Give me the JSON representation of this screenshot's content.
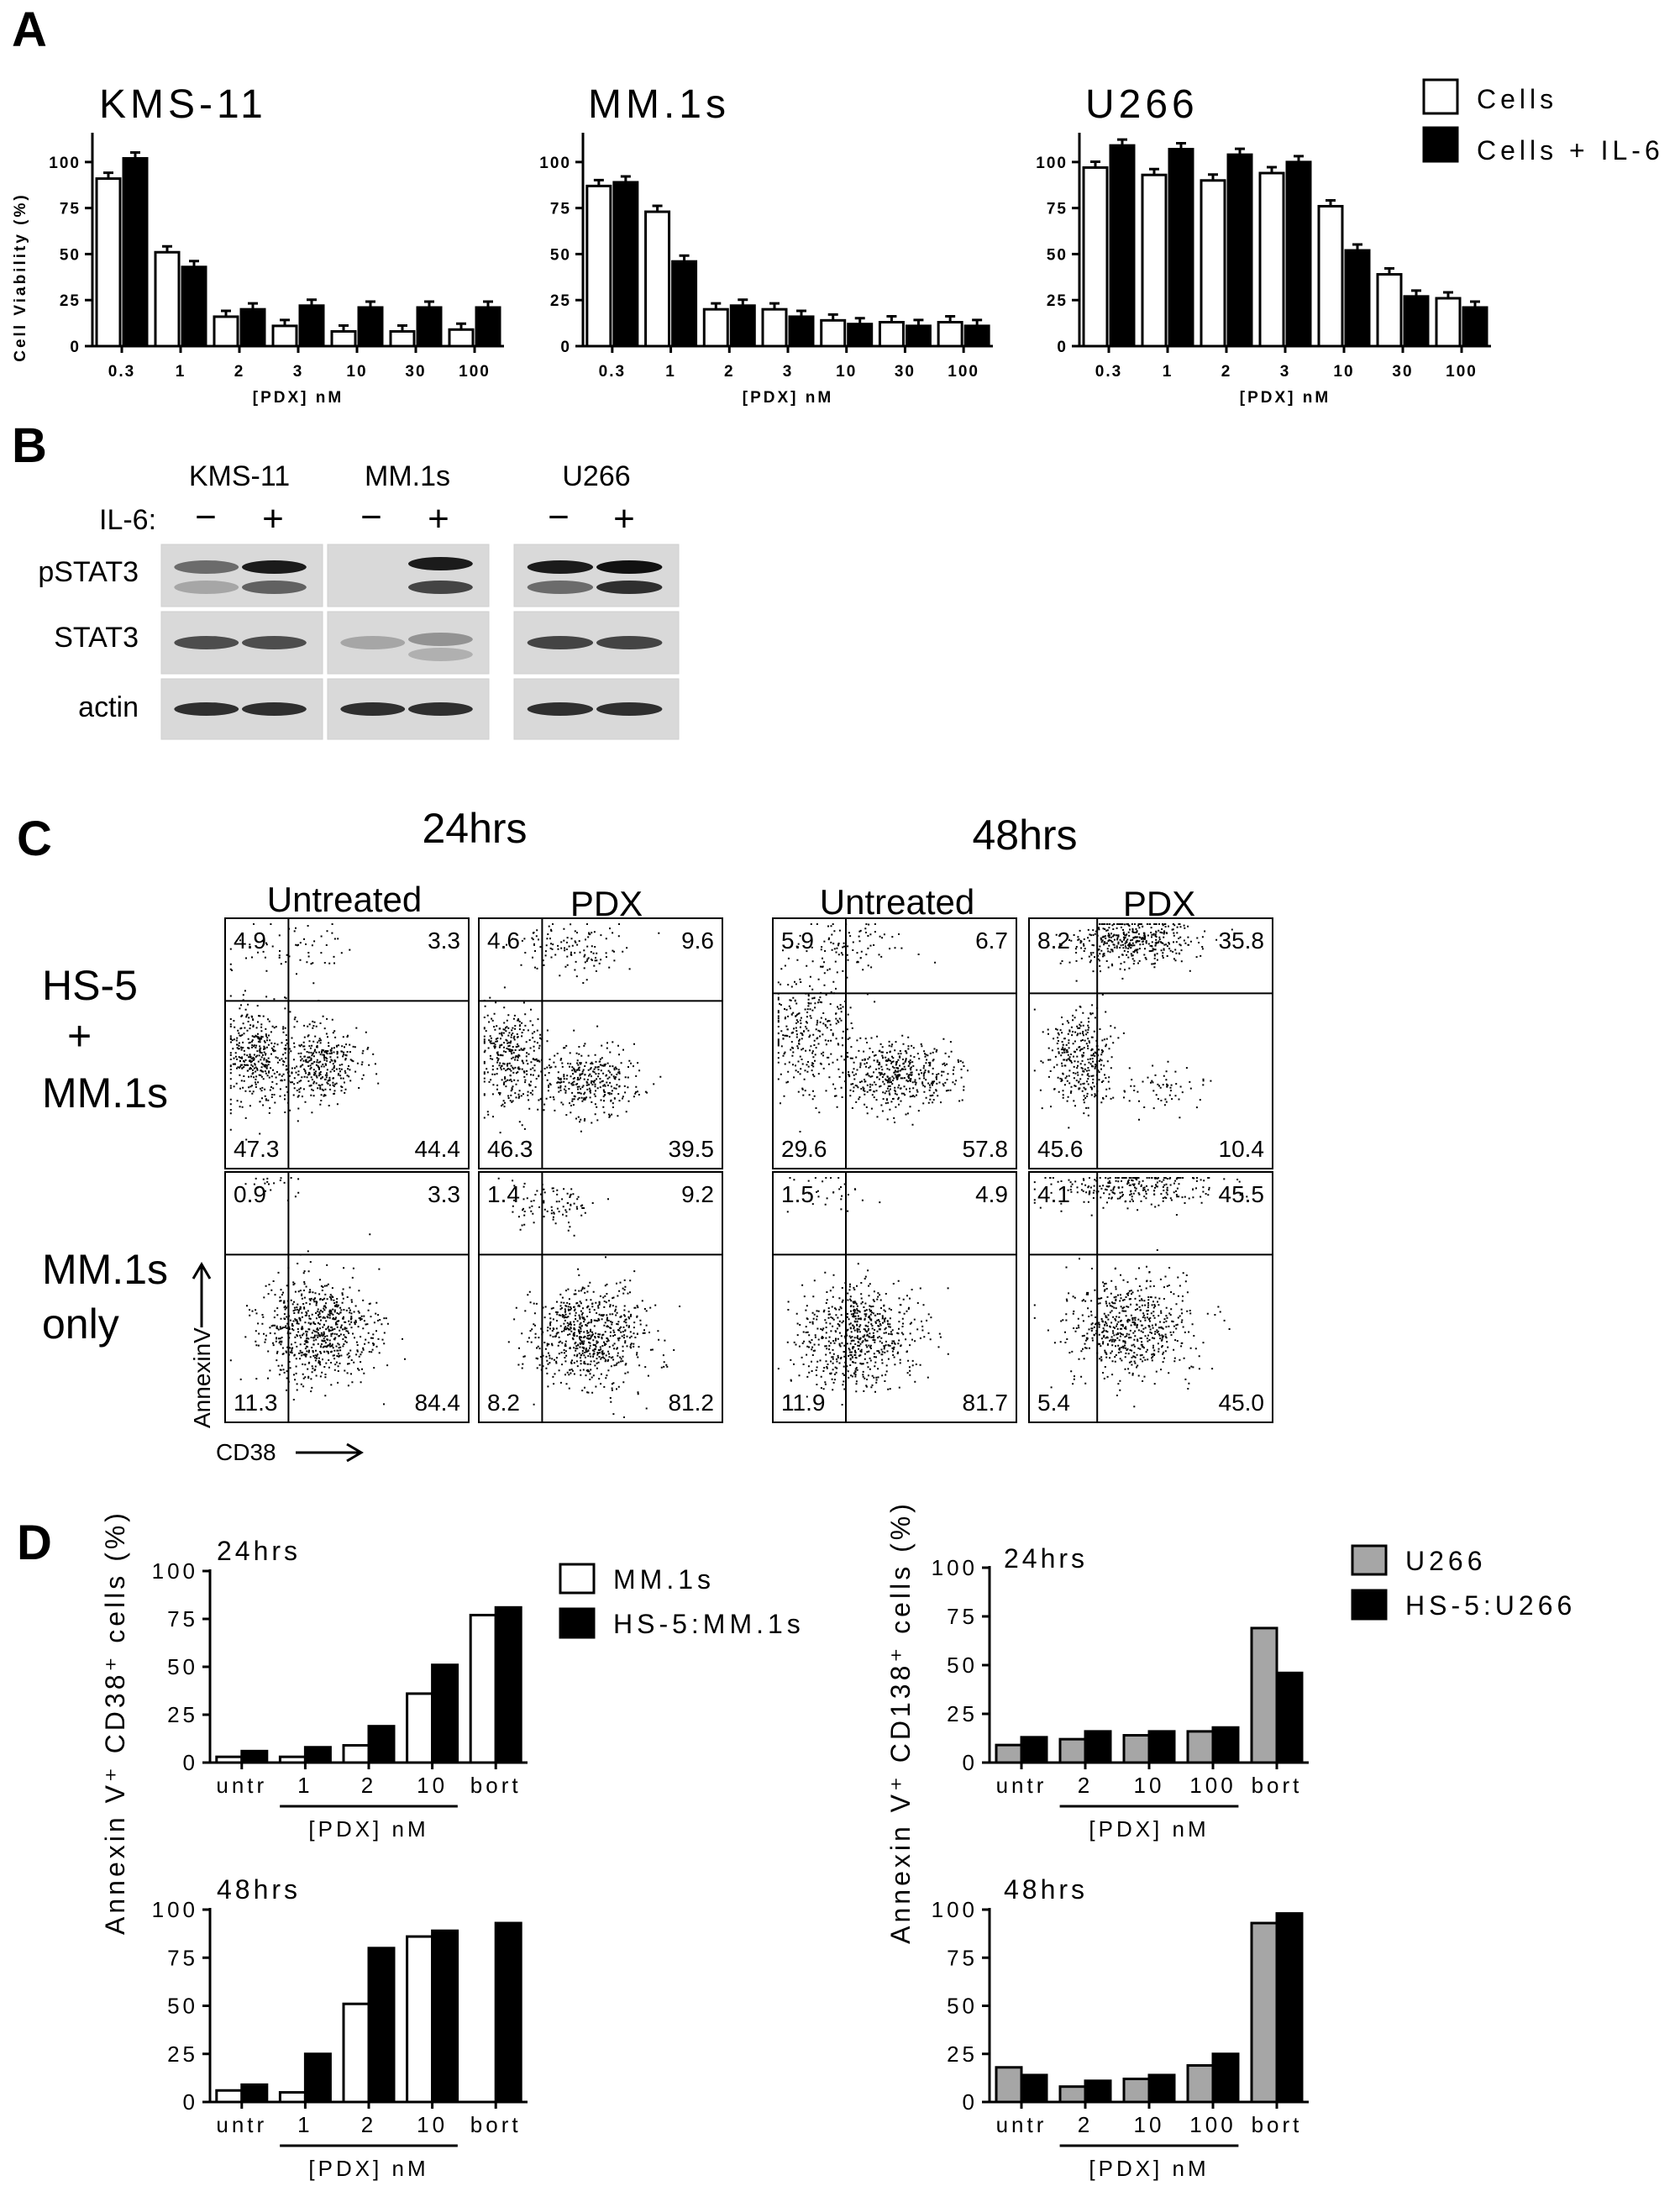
{
  "panel_letters": [
    "A",
    "B",
    "C",
    "D"
  ],
  "panel_a": {
    "legend": [
      {
        "label": "Cells",
        "color": "#ffffff"
      },
      {
        "label": "Cells + IL-6",
        "color": "#000000"
      }
    ],
    "ylabel": "Cell Viability (%)",
    "xlabel": "[PDX] nM"
  },
  "panel_b": {
    "cell_lines": [
      "KMS-11",
      "MM.1s",
      "U266"
    ],
    "il6_label": "IL-6:",
    "signs": [
      "−",
      "+"
    ],
    "rows": [
      "pSTAT3",
      "STAT3",
      "actin"
    ]
  },
  "panel_c": {
    "time_headers": [
      "24hrs",
      "48hrs"
    ],
    "condition_headers": [
      "Untreated",
      "PDX",
      "Untreated",
      "PDX"
    ],
    "row_labels": [
      [
        "HS-5",
        "+",
        "MM.1s"
      ],
      [
        "MM.1s",
        "only"
      ]
    ],
    "y_axis": "AnnexinV",
    "x_axis": "CD38",
    "quadrants": [
      [
        [
          "4.9",
          "3.3",
          "47.3",
          "44.4"
        ],
        [
          "4.6",
          "9.6",
          "46.3",
          "39.5"
        ],
        [
          "5.9",
          "6.7",
          "29.6",
          "57.8"
        ],
        [
          "8.2",
          "35.8",
          "45.6",
          "10.4"
        ]
      ],
      [
        [
          "0.9",
          "3.3",
          "11.3",
          "84.4"
        ],
        [
          "1.4",
          "9.2",
          "8.2",
          "81.2"
        ],
        [
          "1.5",
          "4.9",
          "11.9",
          "81.7"
        ],
        [
          "4.1",
          "45.5",
          "5.4",
          "45.0"
        ]
      ]
    ]
  },
  "panel_d": {
    "left_ylabel": "Annexin V⁺ CD38⁺ cells (%)",
    "right_ylabel": "Annexin V⁺ CD138⁺ cells (%)",
    "xlabel": "[PDX] nM",
    "left_legend": [
      {
        "label": "MM.1s",
        "color": "#ffffff"
      },
      {
        "label": "HS-5:MM.1s",
        "color": "#000000"
      }
    ],
    "right_legend": [
      {
        "label": "U266",
        "color": "#a6a6a6"
      },
      {
        "label": "HS-5:U266",
        "color": "#000000"
      }
    ]
  },
  "chart_data": [
    {
      "type": "bar",
      "title": "KMS-11",
      "categories": [
        "0.3",
        "1",
        "2",
        "3",
        "10",
        "30",
        "100"
      ],
      "series": [
        {
          "name": "Cells",
          "values": [
            91,
            51,
            16,
            11,
            8,
            8,
            9
          ]
        },
        {
          "name": "Cells + IL-6",
          "values": [
            102,
            43,
            20,
            22,
            21,
            21,
            21
          ]
        }
      ],
      "ylabel": "Cell Viability (%)",
      "xlabel": "[PDX] nM",
      "ylim": [
        0,
        115
      ],
      "yticks": [
        0,
        25,
        50,
        75,
        100
      ]
    },
    {
      "type": "bar",
      "title": "MM.1s",
      "categories": [
        "0.3",
        "1",
        "2",
        "3",
        "10",
        "30",
        "100"
      ],
      "series": [
        {
          "name": "Cells",
          "values": [
            87,
            73,
            20,
            20,
            14,
            13,
            13
          ]
        },
        {
          "name": "Cells + IL-6",
          "values": [
            89,
            46,
            22,
            16,
            12,
            11,
            11
          ]
        }
      ],
      "ylabel": "",
      "xlabel": "[PDX] nM",
      "ylim": [
        0,
        115
      ],
      "yticks": [
        0,
        25,
        50,
        75,
        100
      ]
    },
    {
      "type": "bar",
      "title": "U266",
      "categories": [
        "0.3",
        "1",
        "2",
        "3",
        "10",
        "30",
        "100"
      ],
      "series": [
        {
          "name": "Cells",
          "values": [
            97,
            93,
            90,
            94,
            76,
            39,
            26
          ]
        },
        {
          "name": "Cells + IL-6",
          "values": [
            109,
            107,
            104,
            100,
            52,
            27,
            21
          ]
        }
      ],
      "ylabel": "",
      "xlabel": "[PDX] nM",
      "ylim": [
        0,
        115
      ],
      "yticks": [
        0,
        25,
        50,
        75,
        100
      ]
    },
    {
      "type": "bar",
      "title": "24hrs",
      "categories": [
        "untr",
        "1",
        "2",
        "10",
        "bort"
      ],
      "series": [
        {
          "name": "MM.1s",
          "values": [
            3,
            3,
            9,
            36,
            77
          ]
        },
        {
          "name": "HS-5:MM.1s",
          "values": [
            6,
            8,
            19,
            51,
            81
          ]
        }
      ],
      "ylabel": "Annexin V⁺ CD38⁺ cells (%)",
      "xlabel": "[PDX] nM",
      "ylim": [
        0,
        100
      ],
      "yticks": [
        0,
        25,
        50,
        75,
        100
      ]
    },
    {
      "type": "bar",
      "title": "48hrs",
      "categories": [
        "untr",
        "1",
        "2",
        "10",
        "bort"
      ],
      "series": [
        {
          "name": "MM.1s",
          "values": [
            6,
            5,
            51,
            86,
            null
          ]
        },
        {
          "name": "HS-5:MM.1s",
          "values": [
            9,
            25,
            80,
            89,
            93
          ]
        }
      ],
      "ylabel": "Annexin V⁺ CD38⁺ cells (%)",
      "xlabel": "[PDX] nM",
      "ylim": [
        0,
        100
      ],
      "yticks": [
        0,
        25,
        50,
        75,
        100
      ]
    },
    {
      "type": "bar",
      "title": "24hrs",
      "categories": [
        "untr",
        "2",
        "10",
        "100",
        "bort"
      ],
      "series": [
        {
          "name": "U266",
          "values": [
            9,
            12,
            14,
            16,
            69
          ]
        },
        {
          "name": "HS-5:U266",
          "values": [
            13,
            16,
            16,
            18,
            46
          ]
        }
      ],
      "ylabel": "Annexin V⁺ CD138⁺ cells (%)",
      "xlabel": "[PDX] nM",
      "ylim": [
        0,
        100
      ],
      "yticks": [
        0,
        25,
        50,
        75,
        100
      ]
    },
    {
      "type": "bar",
      "title": "48hrs",
      "categories": [
        "untr",
        "2",
        "10",
        "100",
        "bort"
      ],
      "series": [
        {
          "name": "U266",
          "values": [
            18,
            8,
            12,
            19,
            93
          ]
        },
        {
          "name": "HS-5:U266",
          "values": [
            14,
            11,
            14,
            25,
            98
          ]
        }
      ],
      "ylabel": "Annexin V⁺ CD138⁺ cells (%)",
      "xlabel": "[PDX] nM",
      "ylim": [
        0,
        100
      ],
      "yticks": [
        0,
        25,
        50,
        75,
        100
      ]
    }
  ]
}
